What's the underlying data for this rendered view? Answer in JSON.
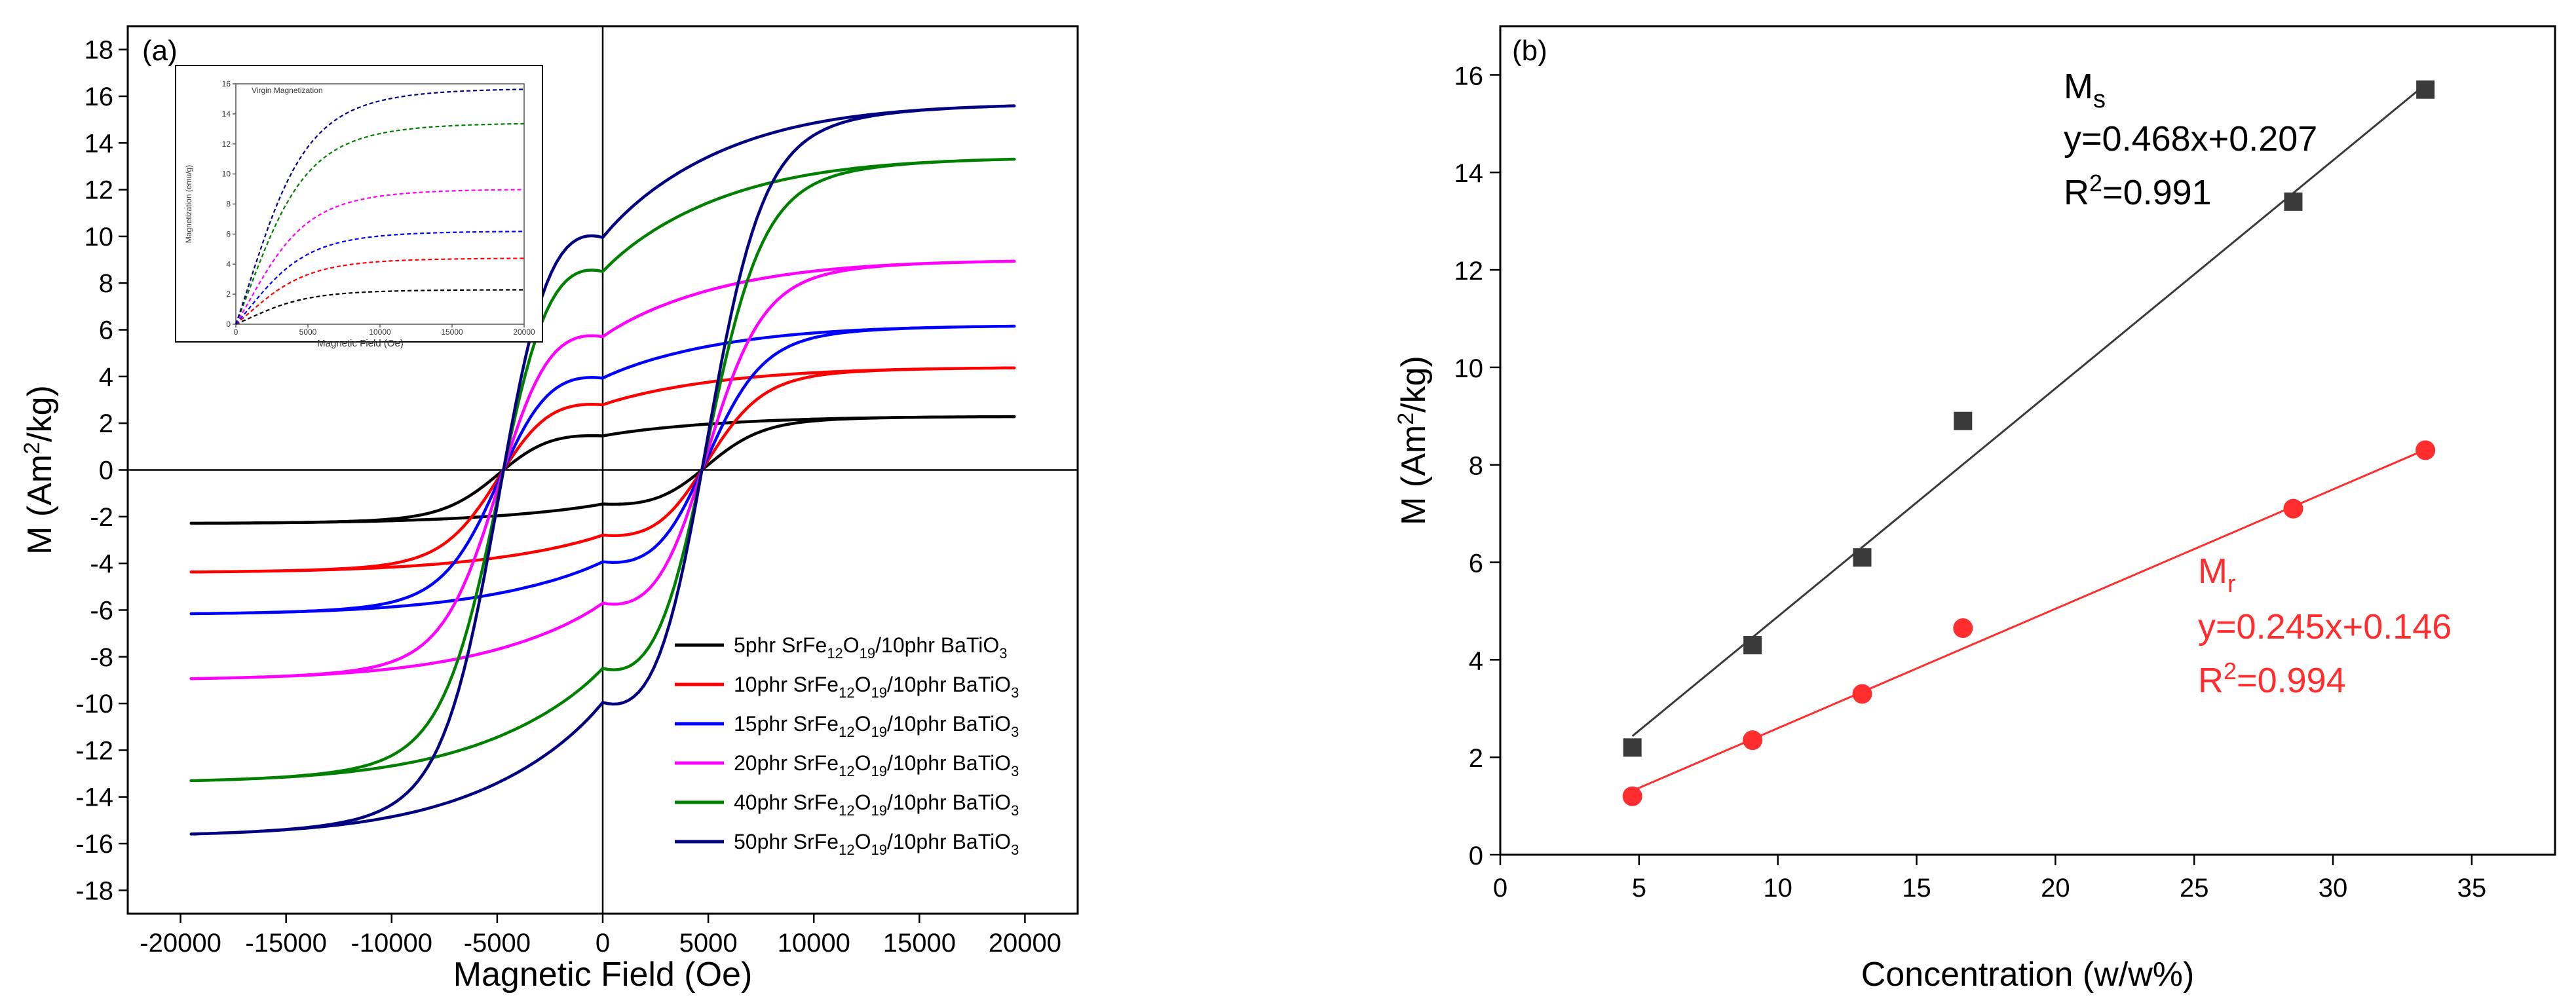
{
  "chart_data": [
    {
      "panel_label": "(a)",
      "type": "line",
      "xlabel": "Magnetic Field (Oe)",
      "ylabel": "M (Am²/kg)",
      "ylabel_parts": {
        "prefix": "M (Am",
        "sup": "2",
        "suffix": "/kg)"
      },
      "xlim": [
        -22500,
        22500
      ],
      "ylim": [
        -19,
        19
      ],
      "x_ticks": [
        -20000,
        -15000,
        -10000,
        -5000,
        0,
        5000,
        10000,
        15000,
        20000
      ],
      "x_tick_labels": [
        "-20000",
        "-15000",
        "-10000",
        "-5000",
        "0",
        "5000",
        "10000",
        "15000",
        "20000"
      ],
      "y_ticks": [
        -18,
        -16,
        -14,
        -12,
        -10,
        -8,
        -6,
        -4,
        -2,
        0,
        2,
        4,
        6,
        8,
        10,
        12,
        14,
        16,
        18
      ],
      "y_tick_labels": [
        "-18",
        "-16",
        "-14",
        "-12",
        "-10",
        "-8",
        "-6",
        "-4",
        "-2",
        "0",
        "2",
        "4",
        "6",
        "8",
        "10",
        "12",
        "14",
        "16",
        "18"
      ],
      "legend_position": "bottom-right",
      "hysteresis_shape": {
        "field_max": 19500,
        "coercive_field": 4700
      },
      "series": [
        {
          "name": "5phr SrFe12O19/10phr BaTiO3",
          "phr": "5phr",
          "color": "#000000",
          "Ms": 2.3,
          "Mr": 1.2,
          "legend_parts": [
            "5phr  SrFe",
            "12",
            "O",
            "19",
            "/10phr BaTiO",
            "3"
          ]
        },
        {
          "name": "10phr SrFe12O19/10phr BaTiO3",
          "phr": "10phr",
          "color": "#ff0000",
          "Ms": 4.4,
          "Mr": 2.35,
          "legend_parts": [
            "10phr SrFe",
            "12",
            "O",
            "19",
            "/10phr BaTiO",
            "3"
          ]
        },
        {
          "name": "15phr SrFe12O19/10phr BaTiO3",
          "phr": "15phr",
          "color": "#0000ff",
          "Ms": 6.2,
          "Mr": 3.3,
          "legend_parts": [
            "15phr SrFe",
            "12",
            "O",
            "19",
            "/10phr BaTiO",
            "3"
          ]
        },
        {
          "name": "20phr SrFe12O19/10phr BaTiO3",
          "phr": "20phr",
          "color": "#ff00ff",
          "Ms": 9.0,
          "Mr": 4.65,
          "legend_parts": [
            "20phr SrFe",
            "12",
            "O",
            "19",
            "/10phr BaTiO",
            "3"
          ]
        },
        {
          "name": "40phr SrFe12O19/10phr BaTiO3",
          "phr": "40phr",
          "color": "#008000",
          "Ms": 13.4,
          "Mr": 7.1,
          "legend_parts": [
            "40phr SrFe",
            "12",
            "O",
            "19",
            "/10phr BaTiO",
            "3"
          ]
        },
        {
          "name": "50phr SrFe12O19/10phr BaTiO3",
          "phr": "50phr",
          "color": "#000080",
          "Ms": 15.7,
          "Mr": 8.3,
          "legend_parts": [
            "50phr SrFe",
            "12",
            "O",
            "19",
            "/10phr BaTiO",
            "3"
          ]
        }
      ],
      "inset": {
        "title": "Virgin Magnetization",
        "xlabel": "Magnetic Field (Oe)",
        "ylabel": "Magnetization (emu/g)",
        "xlim": [
          0,
          20000
        ],
        "ylim": [
          0,
          16
        ],
        "x_tick_labels": [
          "0",
          "5000",
          "10000",
          "15000",
          "20000"
        ],
        "y_tick_labels": [
          "0",
          "2",
          "4",
          "6",
          "8",
          "10",
          "12",
          "14",
          "16"
        ]
      }
    },
    {
      "panel_label": "(b)",
      "type": "scatter",
      "xlabel": "Concentration (w/w%)",
      "ylabel": "M (Am²/kg)",
      "ylabel_parts": {
        "prefix": "M (Am",
        "sup": "2",
        "suffix": "/kg)"
      },
      "xlim": [
        0,
        38
      ],
      "ylim": [
        0,
        17
      ],
      "x_ticks": [
        0,
        5,
        10,
        15,
        20,
        25,
        30,
        35
      ],
      "x_tick_labels": [
        "0",
        "5",
        "10",
        "15",
        "20",
        "25",
        "30",
        "35"
      ],
      "y_ticks": [
        0,
        2,
        4,
        6,
        8,
        10,
        12,
        14,
        16
      ],
      "y_tick_labels": [
        "0",
        "2",
        "4",
        "6",
        "8",
        "10",
        "12",
        "14",
        "16"
      ],
      "series": [
        {
          "name": "Ms",
          "label_main": "M",
          "label_sub": "s",
          "marker": "square",
          "color": "#3a3a3a",
          "x": [
            4.76,
            9.09,
            13.04,
            16.67,
            28.57,
            33.33
          ],
          "y": [
            2.2,
            4.3,
            6.1,
            8.9,
            13.4,
            15.7
          ],
          "fit_equation": "y=0.468x+0.207",
          "fit_slope": 0.468,
          "fit_intercept": 0.207,
          "r2_parts": [
            "R",
            "2",
            "=0.991"
          ]
        },
        {
          "name": "Mr",
          "label_main": "M",
          "label_sub": "r",
          "marker": "circle",
          "color": "#ff2d2d",
          "x": [
            4.76,
            9.09,
            13.04,
            16.67,
            28.57,
            33.33
          ],
          "y": [
            1.2,
            2.35,
            3.3,
            4.65,
            7.1,
            8.3
          ],
          "fit_equation": "y=0.245x+0.146",
          "fit_slope": 0.245,
          "fit_intercept": 0.146,
          "r2_parts": [
            "R",
            "2",
            "=0.994"
          ]
        }
      ]
    }
  ]
}
